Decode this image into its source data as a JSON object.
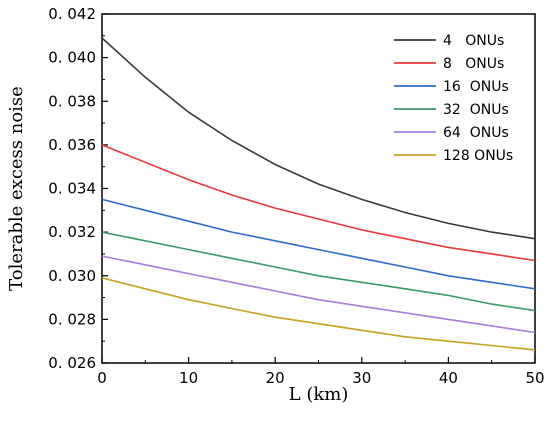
{
  "chart_data": {
    "type": "line",
    "xlabel": "L (km)",
    "ylabel": "Tolerable excess noise",
    "xlim": [
      0,
      50
    ],
    "ylim": [
      0.026,
      0.042
    ],
    "x_ticks": [
      0,
      10,
      20,
      30,
      40,
      50
    ],
    "x_tick_labels": [
      "0",
      "10",
      "20",
      "30",
      "40",
      "50"
    ],
    "y_ticks": [
      0.026,
      0.028,
      0.03,
      0.032,
      0.034,
      0.036,
      0.038,
      0.04,
      0.042
    ],
    "y_tick_labels": [
      "0. 026",
      "0. 028",
      "0. 030",
      "0. 032",
      "0. 034",
      "0. 036",
      "0. 038",
      "0. 040",
      "0. 042"
    ],
    "grid": false,
    "legend_position": "top-right",
    "x": [
      0,
      5,
      10,
      15,
      20,
      25,
      30,
      35,
      40,
      45,
      50
    ],
    "series": [
      {
        "name": "4   ONUs",
        "color": "#3a3a3a",
        "values": [
          0.0409,
          0.0391,
          0.0375,
          0.0362,
          0.0351,
          0.0342,
          0.0335,
          0.0329,
          0.0324,
          0.032,
          0.0317
        ]
      },
      {
        "name": "8   ONUs",
        "color": "#e8383d",
        "values": [
          0.036,
          0.0352,
          0.0344,
          0.0337,
          0.0331,
          0.0326,
          0.0321,
          0.0317,
          0.0313,
          0.031,
          0.0307
        ]
      },
      {
        "name": "16  ONUs",
        "color": "#2f6bcf",
        "values": [
          0.0335,
          0.033,
          0.0325,
          0.032,
          0.0316,
          0.0312,
          0.0308,
          0.0304,
          0.03,
          0.0297,
          0.0294
        ]
      },
      {
        "name": "32  ONUs",
        "color": "#3a9a6a",
        "values": [
          0.032,
          0.0316,
          0.0312,
          0.0308,
          0.0304,
          0.03,
          0.0297,
          0.0294,
          0.0291,
          0.0287,
          0.0284
        ]
      },
      {
        "name": "64  ONUs",
        "color": "#a97bdc",
        "values": [
          0.0309,
          0.0305,
          0.0301,
          0.0297,
          0.0293,
          0.0289,
          0.0286,
          0.0283,
          0.028,
          0.0277,
          0.0274
        ]
      },
      {
        "name": "128 ONUs",
        "color": "#c8a020",
        "values": [
          0.0299,
          0.0294,
          0.0289,
          0.0285,
          0.0281,
          0.0278,
          0.0275,
          0.0272,
          0.027,
          0.0268,
          0.0266
        ]
      }
    ]
  }
}
